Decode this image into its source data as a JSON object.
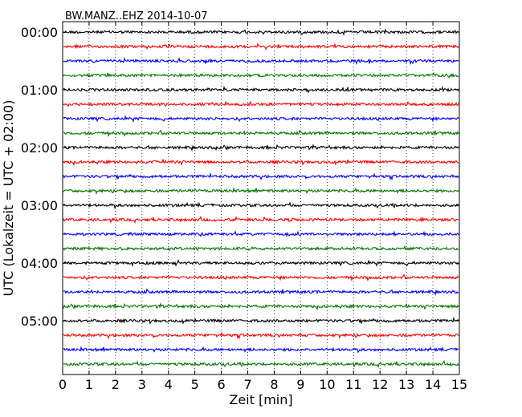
{
  "chart_data": {
    "type": "line",
    "title": "BW.MANZ..EHZ 2014-10-07",
    "xlabel": "Zeit  [min]",
    "ylabel": "UTC (Lokalzeit = UTC + 02:00)",
    "xlim": [
      0,
      15
    ],
    "x_ticks": [
      "0",
      "1",
      "2",
      "3",
      "4",
      "5",
      "6",
      "7",
      "8",
      "9",
      "10",
      "11",
      "12",
      "13",
      "14",
      "15"
    ],
    "y_ticks": [
      "00:00",
      "01:00",
      "02:00",
      "03:00",
      "04:00",
      "05:00"
    ],
    "trace_interval_min": 15,
    "trace_count": 24,
    "trace_colors": [
      "#000000",
      "#ff0000",
      "#0000ff",
      "#007700"
    ],
    "grid": "vertical-dotted"
  }
}
